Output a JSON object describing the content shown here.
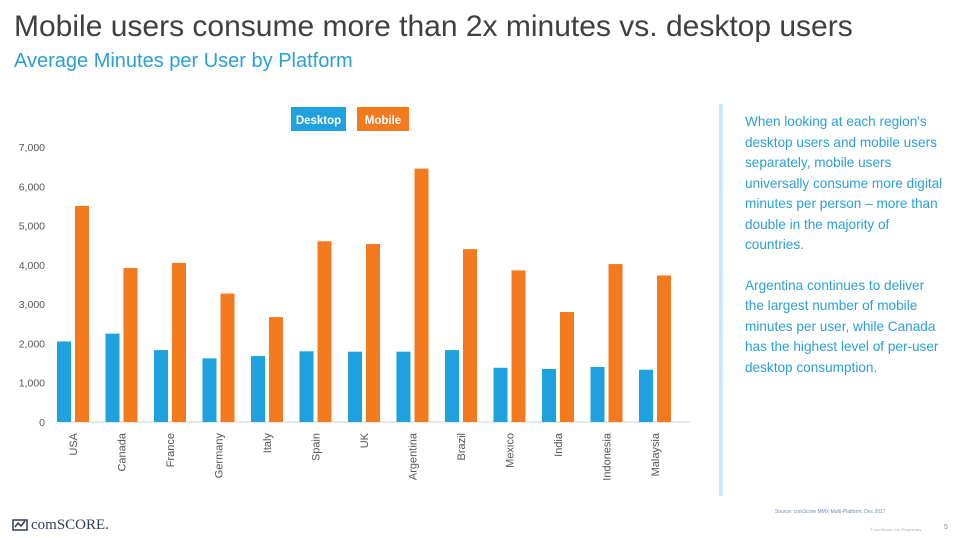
{
  "header": {
    "title": "Mobile users consume more than 2x minutes vs. desktop users",
    "subtitle": "Average Minutes per User by Platform"
  },
  "side_panel": {
    "paragraph1": "When looking at each region's desktop users and mobile users separately, mobile users universally consume more digital minutes per person – more than double in the majority of countries.",
    "paragraph2": "Argentina continues to deliver the largest number of mobile minutes per user, while Canada has the highest level of per-user desktop consumption."
  },
  "footer": {
    "source": "Source: comScore MMX Multi-Platform, Dec 2017",
    "logo_text": "comSCORE.",
    "note": "© comScore, Inc. Proprietary.",
    "page_number": "5"
  },
  "colors": {
    "desktop": "#1ea1de",
    "mobile": "#f47a20",
    "axis_text": "#555555",
    "grid": "#eaeaea"
  },
  "chart_data": {
    "type": "bar",
    "categories": [
      "USA",
      "Canada",
      "France",
      "Germany",
      "Italy",
      "Spain",
      "UK",
      "Argentina",
      "Brazil",
      "Mexico",
      "India",
      "Indonesia",
      "Malaysia"
    ],
    "series": [
      {
        "name": "Desktop",
        "values": [
          2050,
          2250,
          1830,
          1620,
          1680,
          1800,
          1790,
          1790,
          1830,
          1380,
          1350,
          1400,
          1330
        ]
      },
      {
        "name": "Mobile",
        "values": [
          5500,
          3920,
          4050,
          3270,
          2670,
          4600,
          4530,
          6450,
          4400,
          3860,
          2800,
          4020,
          3730
        ]
      }
    ],
    "ylim": [
      0,
      7000
    ],
    "yticks": [
      "0",
      "1,000",
      "2,000",
      "3,000",
      "4,000",
      "5,000",
      "6,000",
      "7,000"
    ],
    "legend_position": "top-center",
    "grid": false
  }
}
